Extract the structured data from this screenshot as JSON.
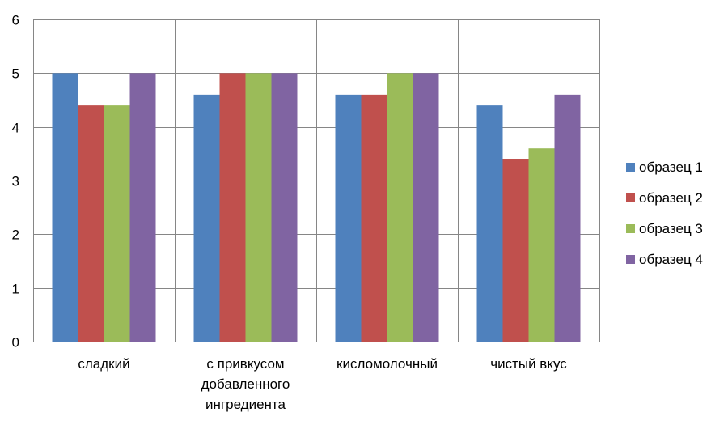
{
  "chart_data": {
    "type": "bar",
    "categories": [
      [
        "сладкий"
      ],
      [
        "с привкусом",
        "добавленного",
        "ингредиента"
      ],
      [
        "кисломолочный"
      ],
      [
        "чистый вкус"
      ]
    ],
    "series": [
      {
        "name": "образец 1",
        "color": "#4F81BD",
        "values": [
          5,
          4.6,
          4.6,
          4.4
        ]
      },
      {
        "name": "образец 2",
        "color": "#C0504D",
        "values": [
          4.4,
          5,
          4.6,
          3.4
        ]
      },
      {
        "name": "образец 3",
        "color": "#9BBB59",
        "values": [
          4.4,
          5,
          5,
          3.6
        ]
      },
      {
        "name": "образец 4",
        "color": "#8064A2",
        "values": [
          5,
          5,
          5,
          4.6
        ]
      }
    ],
    "ylim": [
      0,
      6
    ],
    "yticks": [
      0,
      1,
      2,
      3,
      4,
      5,
      6
    ],
    "grid": true,
    "legend_position": "right"
  }
}
